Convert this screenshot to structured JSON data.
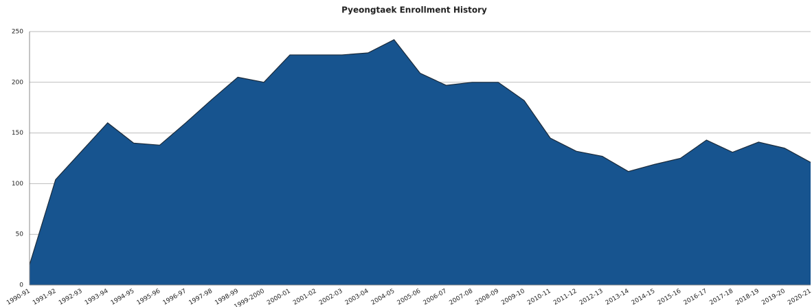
{
  "chart_data": {
    "type": "area",
    "title": "Pyeongtaek Enrollment History",
    "categories": [
      "1990-91",
      "1991-92",
      "1992-93",
      "1993-94",
      "1994-95",
      "1995-96",
      "1996-97",
      "1997-98",
      "1998-99",
      "1999-2000",
      "2000-01",
      "2001-02",
      "2002-03",
      "2003-04",
      "2004-05",
      "2005-06",
      "2006-07",
      "2007-08",
      "2008-09",
      "2009-10",
      "2010-11",
      "2011-12",
      "2012-13",
      "2013-14",
      "2014-15",
      "2015-16",
      "2016-17",
      "2017-18",
      "2018-19",
      "2019-20",
      "2020-21"
    ],
    "values": [
      20,
      104,
      132,
      160,
      140,
      138,
      160,
      183,
      205,
      200,
      227,
      227,
      227,
      229,
      242,
      209,
      197,
      200,
      200,
      182,
      145,
      132,
      127,
      112,
      119,
      125,
      143,
      131,
      141,
      135,
      121
    ],
    "color": "#17548f",
    "ylim": [
      0,
      250
    ],
    "yticks": [
      0,
      50,
      100,
      150,
      200,
      250
    ],
    "grid": true
  }
}
